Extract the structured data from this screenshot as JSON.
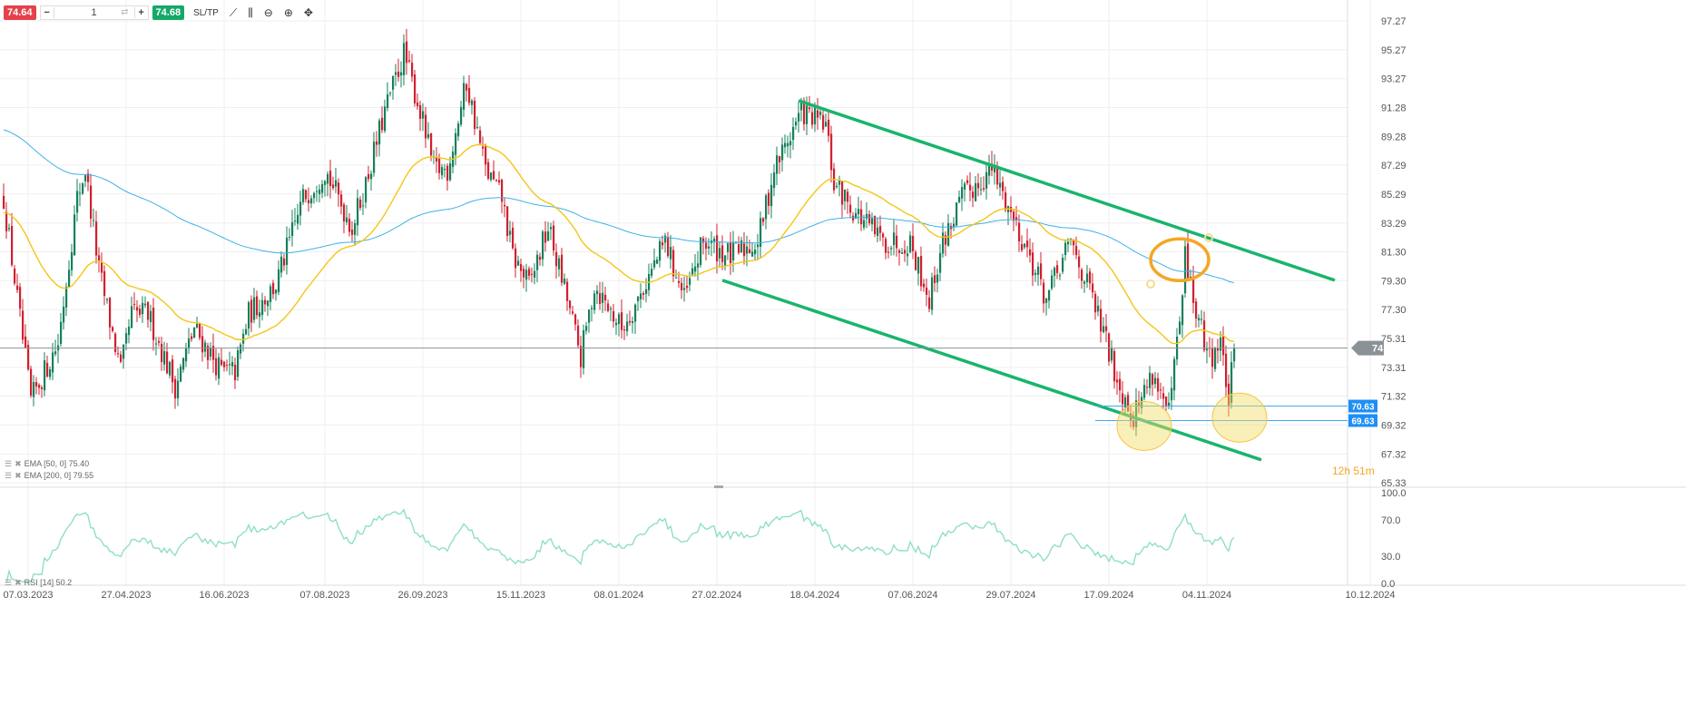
{
  "toolbar": {
    "sell_price": "74.64",
    "quantity": "1",
    "buy_price": "74.68",
    "sltp_label": "SL/TP",
    "icons": [
      "minus-icon",
      "swap-icon",
      "plus-icon",
      "line-chart-icon",
      "candles-icon",
      "zoom-out-icon",
      "zoom-in-icon",
      "crosshair-icon"
    ]
  },
  "legend": {
    "ema50": "EMA [50, 0] 75.40",
    "ema200": "EMA [200, 0] 79.55",
    "rsi": "RSI [14] 50.2"
  },
  "countdown": {
    "hours": "12h",
    "minutes": "51m"
  },
  "colors": {
    "up": "#15805a",
    "down": "#d0202f",
    "ema50": "#f5c518",
    "ema200": "#3fb1e8",
    "trend": "#19b46e",
    "rsi": "#8fe0c0",
    "hline": "#3fa9f5",
    "orange": "#f5a623"
  },
  "chart_data": {
    "type": "candlestick",
    "ylim": [
      65.33,
      97.27
    ],
    "y_ticks": [
      "97.27",
      "95.27",
      "93.27",
      "91.28",
      "89.28",
      "87.29",
      "85.29",
      "83.29",
      "81.30",
      "79.30",
      "77.30",
      "75.31",
      "73.31",
      "71.32",
      "69.32",
      "67.32",
      "65.33"
    ],
    "x_ticks": [
      {
        "label": "07.03.2023",
        "index": 9
      },
      {
        "label": "27.04.2023",
        "index": 45
      },
      {
        "label": "16.06.2023",
        "index": 81
      },
      {
        "label": "07.08.2023",
        "index": 118
      },
      {
        "label": "26.09.2023",
        "index": 154
      },
      {
        "label": "15.11.2023",
        "index": 190
      },
      {
        "label": "08.01.2024",
        "index": 226
      },
      {
        "label": "27.02.2024",
        "index": 262
      },
      {
        "label": "18.04.2024",
        "index": 298
      },
      {
        "label": "07.06.2024",
        "index": 334
      },
      {
        "label": "29.07.2024",
        "index": 370
      },
      {
        "label": "17.09.2024",
        "index": 406
      },
      {
        "label": "04.11.2024",
        "index": 442
      },
      {
        "label": "10.12.2024",
        "index": 502
      }
    ],
    "n_candles": 453,
    "anchors": [
      [
        0,
        85
      ],
      [
        10,
        71
      ],
      [
        20,
        75
      ],
      [
        27,
        85
      ],
      [
        30,
        87
      ],
      [
        35,
        80
      ],
      [
        43,
        73
      ],
      [
        47,
        77
      ],
      [
        53,
        77
      ],
      [
        63,
        72
      ],
      [
        70,
        76
      ],
      [
        80,
        73
      ],
      [
        85,
        73
      ],
      [
        90,
        77
      ],
      [
        100,
        79
      ],
      [
        110,
        85
      ],
      [
        118,
        87
      ],
      [
        128,
        83
      ],
      [
        133,
        86
      ],
      [
        140,
        91
      ],
      [
        147,
        95
      ],
      [
        153,
        91
      ],
      [
        158,
        87
      ],
      [
        163,
        87
      ],
      [
        170,
        93
      ],
      [
        177,
        87
      ],
      [
        183,
        85
      ],
      [
        187,
        81
      ],
      [
        193,
        79
      ],
      [
        200,
        83
      ],
      [
        207,
        78
      ],
      [
        212,
        74
      ],
      [
        217,
        79
      ],
      [
        227,
        76
      ],
      [
        233,
        78
      ],
      [
        243,
        82
      ],
      [
        250,
        78
      ],
      [
        257,
        82
      ],
      [
        267,
        81
      ],
      [
        277,
        82
      ],
      [
        283,
        87
      ],
      [
        293,
        91
      ],
      [
        302,
        90
      ],
      [
        305,
        86
      ],
      [
        313,
        84
      ],
      [
        323,
        82
      ],
      [
        333,
        82
      ],
      [
        340,
        78
      ],
      [
        345,
        82
      ],
      [
        352,
        85
      ],
      [
        363,
        87
      ],
      [
        370,
        84
      ],
      [
        377,
        81
      ],
      [
        383,
        78
      ],
      [
        392,
        82
      ],
      [
        400,
        78
      ],
      [
        410,
        72
      ],
      [
        415,
        70
      ],
      [
        422,
        73
      ],
      [
        428,
        70
      ],
      [
        433,
        78
      ],
      [
        434,
        81
      ],
      [
        438,
        77
      ],
      [
        443,
        74
      ],
      [
        447,
        75
      ],
      [
        450,
        71
      ],
      [
        452,
        74.64
      ]
    ],
    "last_price": "74.64",
    "ema50_last": 75.4,
    "ema200_last": 79.55,
    "rsi": {
      "period": 14,
      "last": 50.2,
      "ylim": [
        0,
        100
      ],
      "y_ticks": [
        "100.0",
        "70.0",
        "30.0",
        "0.0"
      ]
    },
    "drawings": {
      "upper_channel": [
        [
          292,
          91.75
        ],
        [
          489,
          79.33
        ]
      ],
      "lower_channel": [
        [
          264,
          79.33
        ],
        [
          462,
          66.91
        ]
      ],
      "hlines": [
        {
          "price": 70.63,
          "label": "70.63",
          "from": 401
        },
        {
          "price": 69.63,
          "label": "69.63",
          "from": 401
        }
      ],
      "highlight_circles": [
        {
          "index": 432,
          "price": 80.75,
          "color": "orange"
        },
        {
          "index": 419,
          "price": 69.26,
          "color": "yellow"
        },
        {
          "index": 454,
          "price": 69.83,
          "color": "yellow"
        }
      ]
    }
  }
}
